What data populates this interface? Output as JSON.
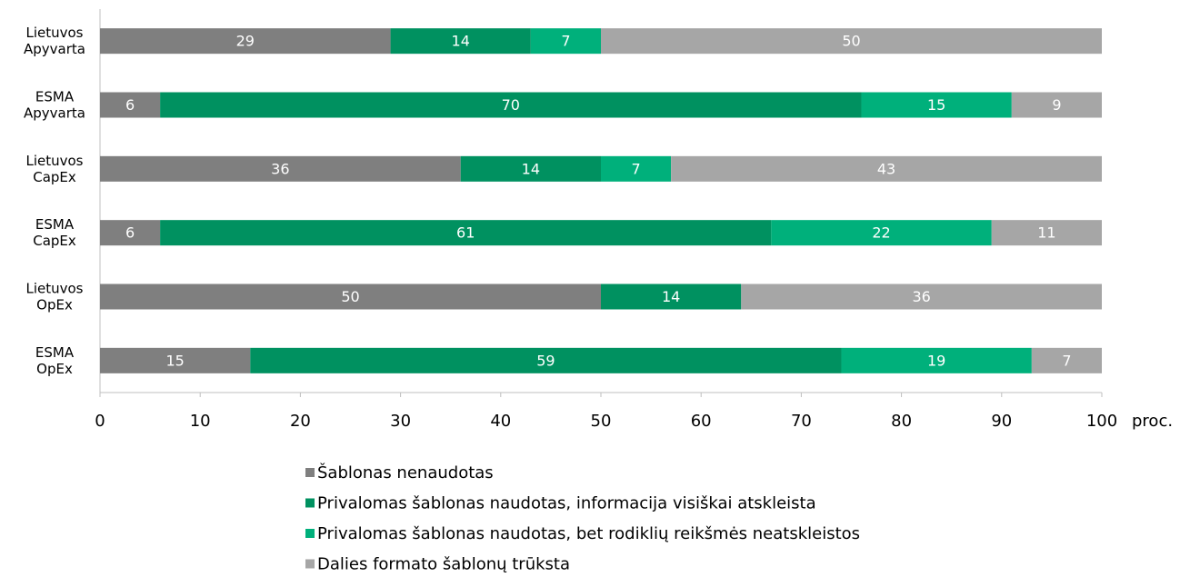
{
  "chart_data": {
    "type": "hbar_stacked",
    "categories": [
      "Lietuvos Apyvarta",
      "ESMA Apyvarta",
      "Lietuvos CapEx",
      "ESMA CapEx",
      "Lietuvos OpEx",
      "ESMA OpEx"
    ],
    "series": [
      {
        "name": "Šablonas nenaudotas",
        "color": "#7f7f7f",
        "values": [
          29,
          6,
          36,
          6,
          50,
          15
        ]
      },
      {
        "name": "Privalomas šablonas naudotas, informacija visiškai atskleista",
        "color": "#009160",
        "values": [
          14,
          70,
          14,
          61,
          14,
          59
        ]
      },
      {
        "name": "Privalomas šablonas naudotas, bet rodiklių reikšmės neatskleistos",
        "color": "#00b07b",
        "values": [
          7,
          15,
          7,
          22,
          null,
          19
        ]
      },
      {
        "name": "Dalies formato šablonų trūksta",
        "color": "#a6a6a6",
        "values": [
          50,
          9,
          43,
          11,
          36,
          7
        ]
      }
    ],
    "xlabel": "proc.",
    "xlim": [
      0,
      100
    ],
    "xticks": [
      0,
      10,
      20,
      30,
      40,
      50,
      60,
      70,
      80,
      90,
      100
    ]
  }
}
